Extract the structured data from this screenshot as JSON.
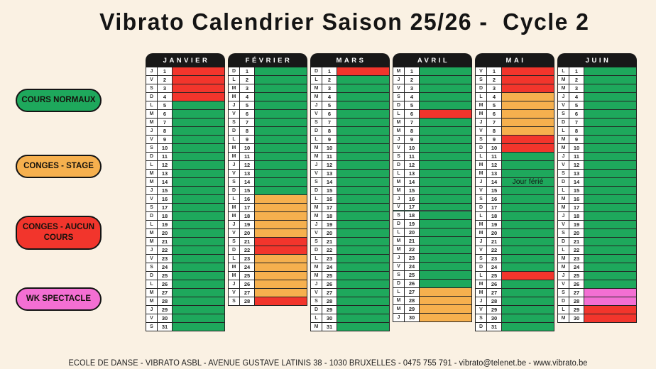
{
  "title": "Vibrato Calendrier Saison 25/26 -  Cycle 2",
  "footer": "ECOLE DE DANSE - VIBRATO ASBL - AVENUE GUSTAVE LATINIS 38 - 1030 BRUXELLES - 0475 755 791 - vibrato@telenet.be - www.vibrato.be",
  "colors": {
    "green": "#1EA85C",
    "orange": "#F6B04E",
    "red": "#F2352C",
    "pink": "#F36FD3"
  },
  "color_codes": {
    "G": "green",
    "O": "orange",
    "R": "red",
    "P": "pink"
  },
  "legend": [
    {
      "label": "COURS NORMAUX",
      "color": "green"
    },
    {
      "label": "CONGES - STAGE",
      "color": "orange"
    },
    {
      "label": "CONGES - AUCUN COURS",
      "color": "red"
    },
    {
      "label": "WK SPECTACLE",
      "color": "pink"
    }
  ],
  "months": [
    {
      "name": "JANVIER",
      "letters": "JVSDLMMJVSDLMMJVSDLMMJVSDLMMJVS",
      "colors": "RRRRGGGGGGGGGGGGGGGGGGGGGGGGGGG"
    },
    {
      "name": "FÉVRIER",
      "letters": "DLMMJVSDLMMJVSDLMMJVSDLMMJVS",
      "colors": "GGGGGGGGGGGGGGGOOOOORROOOOOR"
    },
    {
      "name": "MARS",
      "letters": "DLMMJVSDLMMJVSDLMMJVSDLMMJVSDLM",
      "colors": "RGGGGGGGGGGGGGGGGGGGGGGGGGGGGGG"
    },
    {
      "name": "AVRIL",
      "letters": "MJVSDLMMJVSDLMMJVSDLMMJVSDLMMJ",
      "colors": "GGGGGRGGGGGGGGGGGGGGGGGGGGOOOO",
      "divider_after": 17
    },
    {
      "name": "MAI",
      "letters": "VSDLMMJVSDLMMJVSDLMMJVSDLMMJVSD",
      "colors": "RRROOOOORRGGGGGGGGGGGGGGRGGGGGG",
      "notes": {
        "14": "Jour férié"
      }
    },
    {
      "name": "JUIN",
      "letters": "LMMJVSDLMMJVSDLMMJVSDLMMJVSDLM",
      "colors": "GGGGGGGGGGGGGGGGGGGGGGGGGGPPRR"
    }
  ]
}
